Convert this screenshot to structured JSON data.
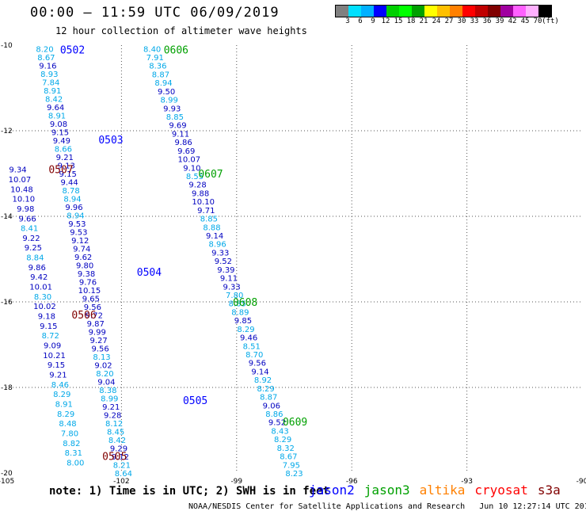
{
  "title": "00:00 — 11:59 UTC 06/09/2019",
  "subtitle": "12 hour collection of altimeter wave heights",
  "legend": {
    "colors": [
      "#808080",
      "#00e0ff",
      "#00b0ff",
      "#0000ff",
      "#00d000",
      "#00ff00",
      "#00a000",
      "#ffff00",
      "#ffc000",
      "#ff8000",
      "#ff0000",
      "#c00000",
      "#800000",
      "#a000a0",
      "#ff60ff",
      "#ffb0ff",
      "#000000"
    ],
    "labels": [
      "3",
      "6",
      "9",
      "12",
      "15",
      "18",
      "21",
      "24",
      "27",
      "30",
      "33",
      "36",
      "39",
      "42",
      "45",
      "70",
      "(ft)"
    ]
  },
  "axes": {
    "x_ticks": [
      "-105",
      "-102",
      "-99",
      "-96",
      "-93",
      "-90"
    ],
    "y_ticks": [
      "-10",
      "-12",
      "-14",
      "-16",
      "-18",
      "-20"
    ],
    "xlim": [
      -105,
      -90
    ],
    "ylim": [
      -20,
      -10
    ]
  },
  "chart_data": {
    "type": "scatter",
    "units": "ft",
    "sat_colors": {
      "jason2": "#0000ff",
      "jason3": "#00a000",
      "altika": "#ff8000",
      "cryosat": "#ff0000",
      "s3a": "#800000"
    },
    "pass_labels": [
      {
        "text": "0502",
        "color": "#0000ff",
        "lon": -103.6,
        "lat": -10.1
      },
      {
        "text": "0606",
        "color": "#00a000",
        "lon": -100.9,
        "lat": -10.1
      },
      {
        "text": "0503",
        "color": "#0000ff",
        "lon": -102.6,
        "lat": -12.2
      },
      {
        "text": "0507",
        "color": "#800000",
        "lon": -103.9,
        "lat": -12.9
      },
      {
        "text": "0607",
        "color": "#00a000",
        "lon": -100.0,
        "lat": -13.0
      },
      {
        "text": "0504",
        "color": "#0000ff",
        "lon": -101.6,
        "lat": -15.3
      },
      {
        "text": "0608",
        "color": "#00a000",
        "lon": -99.1,
        "lat": -16.0
      },
      {
        "text": "0506",
        "color": "#800000",
        "lon": -103.3,
        "lat": -16.3
      },
      {
        "text": "0505",
        "color": "#0000ff",
        "lon": -100.4,
        "lat": -18.3
      },
      {
        "text": "0609",
        "color": "#00a000",
        "lon": -97.8,
        "lat": -18.8
      },
      {
        "text": "0505",
        "color": "#800000",
        "lon": -102.5,
        "lat": -19.6
      }
    ],
    "tracks": [
      {
        "pass": "0502",
        "start": [
          -104.0,
          -10.08
        ],
        "end": [
          -101.95,
          -20.0
        ],
        "color": "#0000ff",
        "values": [
          "8.20",
          "8.67",
          "9.16",
          "8.93",
          "7.84",
          "8.91",
          "8.42",
          "9.64",
          "8.91",
          "9.08",
          "9.15",
          "9.49",
          "8.66",
          "9.21",
          "9.13",
          "9.15",
          "9.44",
          "8.78",
          "8.94",
          "9.96",
          "8.94",
          "9.53",
          "9.53",
          "9.12",
          "9.74",
          "9.62",
          "9.80",
          "9.38",
          "9.76",
          "10.15",
          "9.65",
          "9.56",
          "9.72",
          "9.87",
          "9.99",
          "9.27",
          "9.56",
          "8.13",
          "9.02",
          "8.20",
          "9.04",
          "8.38",
          "8.99",
          "9.21",
          "9.28",
          "8.12",
          "8.45",
          "8.42",
          "9.29",
          "9.12",
          "8.21",
          "8.64"
        ]
      },
      {
        "pass": "0606",
        "start": [
          -101.2,
          -10.08
        ],
        "end": [
          -97.5,
          -20.0
        ],
        "color": "#00a000",
        "values": [
          "8.40",
          "7.91",
          "8.36",
          "8.87",
          "8.94",
          "9.50",
          "8.99",
          "9.93",
          "8.85",
          "9.69",
          "9.11",
          "9.86",
          "9.69",
          "10.07",
          "9.10",
          "8.55",
          "9.28",
          "9.88",
          "10.10",
          "9.71",
          "8.85",
          "8.88",
          "9.14",
          "8.96",
          "9.33",
          "9.52",
          "9.39",
          "9.11",
          "9.33",
          "7.80",
          "8.85",
          "8.89",
          "9.85",
          "8.29",
          "9.46",
          "8.51",
          "8.70",
          "9.56",
          "9.14",
          "8.92",
          "8.29",
          "8.87",
          "9.06",
          "8.86",
          "9.52",
          "8.43",
          "8.29",
          "8.32",
          "8.67",
          "7.95",
          "8.23"
        ]
      },
      {
        "pass": "0507",
        "start": [
          -104.7,
          -12.9
        ],
        "end": [
          -103.2,
          -19.75
        ],
        "color": "#800000",
        "values": [
          "9.34",
          "10.07",
          "10.48",
          "10.10",
          "9.98",
          "9.66",
          "8.41",
          "9.22",
          "9.25",
          "8.84",
          "9.86",
          "9.42",
          "10.01",
          "8.30",
          "10.02",
          "9.18",
          "9.15",
          "8.72",
          "9.09",
          "10.21",
          "9.15",
          "9.21",
          "8.46",
          "8.29",
          "8.91",
          "8.29",
          "8.48",
          "7.80",
          "8.82",
          "8.31",
          "8.00"
        ]
      }
    ]
  },
  "note": "note: 1) Time is in UTC; 2) SWH is in feet",
  "satellites": [
    {
      "name": "jason2",
      "color": "#0000ff"
    },
    {
      "name": "jason3",
      "color": "#00a000"
    },
    {
      "name": "altika",
      "color": "#ff8000"
    },
    {
      "name": "cryosat",
      "color": "#ff0000"
    },
    {
      "name": "s3a",
      "color": "#800000"
    }
  ],
  "credit": "NOAA/NESDIS Center for Satellite Applications and Research   Jun 10 12:27:14 UTC 2019"
}
